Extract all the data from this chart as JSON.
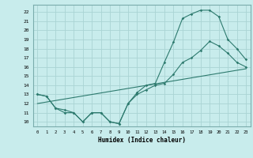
{
  "title": "",
  "xlabel": "Humidex (Indice chaleur)",
  "background_color": "#c8ecec",
  "line_color": "#2d7a6e",
  "xlim": [
    -0.5,
    23.5
  ],
  "ylim": [
    9.5,
    22.8
  ],
  "xticks": [
    0,
    1,
    2,
    3,
    4,
    5,
    6,
    7,
    8,
    9,
    10,
    11,
    12,
    13,
    14,
    15,
    16,
    17,
    18,
    19,
    20,
    21,
    22,
    23
  ],
  "yticks": [
    10,
    11,
    12,
    13,
    14,
    15,
    16,
    17,
    18,
    19,
    20,
    21,
    22
  ],
  "series1_x": [
    0,
    1,
    2,
    3,
    4,
    5,
    6,
    7,
    8,
    9,
    10,
    11,
    12,
    13,
    14,
    15,
    16,
    17,
    18,
    19,
    20,
    21,
    22,
    23
  ],
  "series1_y": [
    13.0,
    12.8,
    11.5,
    11.0,
    11.0,
    10.0,
    11.0,
    11.0,
    10.0,
    9.8,
    12.0,
    13.2,
    14.0,
    14.2,
    16.5,
    18.7,
    21.3,
    21.8,
    22.2,
    22.2,
    21.5,
    19.0,
    18.0,
    16.8
  ],
  "series2_x": [
    0,
    1,
    2,
    3,
    4,
    5,
    6,
    7,
    8,
    9,
    10,
    11,
    12,
    13,
    14,
    15,
    16,
    17,
    18,
    19,
    20,
    21,
    22,
    23
  ],
  "series2_y": [
    13.0,
    12.8,
    11.5,
    11.3,
    11.0,
    10.0,
    11.0,
    11.0,
    10.0,
    9.8,
    12.0,
    13.0,
    13.5,
    14.0,
    14.2,
    15.2,
    16.5,
    17.0,
    17.8,
    18.8,
    18.3,
    17.5,
    16.5,
    16.0
  ],
  "series3_x": [
    0,
    23
  ],
  "series3_y": [
    12.0,
    15.8
  ],
  "grid_color": "#aad4d4",
  "spine_color": "#7aacac"
}
